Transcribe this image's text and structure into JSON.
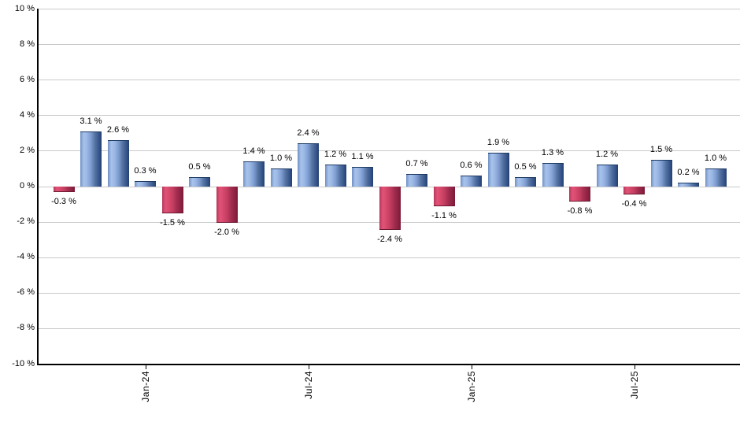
{
  "chart_data": {
    "type": "bar",
    "title": "",
    "xlabel": "",
    "ylabel": "",
    "ylim": [
      -10,
      10
    ],
    "grid": true,
    "legend_position": "none",
    "values": [
      -0.3,
      3.1,
      2.6,
      0.3,
      -1.5,
      0.5,
      -2.0,
      1.4,
      1.0,
      2.4,
      1.2,
      1.1,
      -2.4,
      0.7,
      -1.1,
      0.6,
      1.9,
      0.5,
      1.3,
      -0.8,
      1.2,
      -0.4,
      1.5,
      0.2,
      1.0
    ],
    "bar_labels": [
      "-0.3 %",
      "3.1 %",
      "2.6 %",
      "0.3 %",
      "-1.5 %",
      "0.5 %",
      "-2.0 %",
      "1.4 %",
      "1.0 %",
      "2.4 %",
      "1.2 %",
      "1.1 %",
      "-2.4 %",
      "0.7 %",
      "-1.1 %",
      "0.6 %",
      "1.9 %",
      "0.5 %",
      "1.3 %",
      "-0.8 %",
      "1.2 %",
      "-0.4 %",
      "1.5 %",
      "0.2 %",
      "1.0 %"
    ],
    "x_ticks": [
      {
        "bar_index": 3,
        "label": "Jan-24"
      },
      {
        "bar_index": 9,
        "label": "Jul-24"
      },
      {
        "bar_index": 15,
        "label": "Jan-25"
      },
      {
        "bar_index": 21,
        "label": "Jul-25"
      }
    ],
    "y_ticks": [
      {
        "value": 10,
        "label": "10 %"
      },
      {
        "value": 8,
        "label": "8 %"
      },
      {
        "value": 6,
        "label": "6 %"
      },
      {
        "value": 4,
        "label": "4 %"
      },
      {
        "value": 2,
        "label": "2 %"
      },
      {
        "value": 0,
        "label": "0 %"
      },
      {
        "value": -2,
        "label": "-2 %"
      },
      {
        "value": -4,
        "label": "-4 %"
      },
      {
        "value": -6,
        "label": "-6 %"
      },
      {
        "value": -8,
        "label": "-8 %"
      },
      {
        "value": -10,
        "label": "-10 %"
      }
    ],
    "colors": {
      "positive_base": "#8fadd9",
      "negative_base": "#cc3a5e",
      "positive_stops": [
        "#7090c4 0%",
        "#a7c2ea 16%",
        "#9db9e5 30%",
        "#7d9cd1 50%",
        "#54729f 70%",
        "#35548d 88%",
        "#24406e 100%"
      ],
      "negative_stops": [
        "#b43a58 0%",
        "#e15278 16%",
        "#d84a6e 30%",
        "#c23e60 50%",
        "#a22c4e 70%",
        "#8c2242 88%",
        "#781a36 100%"
      ],
      "gridline": "#c9c9c9",
      "axis": "#000000",
      "label_text": "#000000"
    }
  }
}
